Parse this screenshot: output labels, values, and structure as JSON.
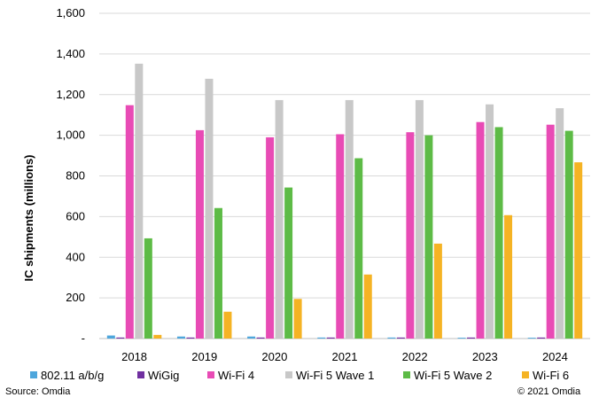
{
  "chart_data": {
    "type": "bar",
    "title": "",
    "xlabel": "",
    "ylabel": "IC shipments (millions)",
    "ylim": [
      0,
      1600
    ],
    "yticks": [
      0,
      200,
      400,
      600,
      800,
      1000,
      1200,
      1400,
      1600
    ],
    "ytick_labels": [
      "-",
      "200",
      "400",
      "600",
      "800",
      "1,000",
      "1,200",
      "1,400",
      "1,600"
    ],
    "grid": true,
    "legend_position": "bottom",
    "categories": [
      "2018",
      "2019",
      "2020",
      "2021",
      "2022",
      "2023",
      "2024"
    ],
    "series": [
      {
        "name": "802.11 a/b/g",
        "color": "#4EA6DC",
        "values": [
          15,
          10,
          10,
          5,
          5,
          4,
          4
        ]
      },
      {
        "name": "WiGig",
        "color": "#7030A0",
        "values": [
          5,
          5,
          5,
          5,
          5,
          5,
          5
        ]
      },
      {
        "name": "Wi-Fi 4",
        "color": "#E84BB5",
        "values": [
          1148,
          1025,
          990,
          1005,
          1015,
          1065,
          1052
        ]
      },
      {
        "name": "Wi-Fi 5  Wave 1",
        "color": "#C8C8C8",
        "values": [
          1352,
          1278,
          1173,
          1173,
          1173,
          1152,
          1133
        ]
      },
      {
        "name": "Wi-Fi 5  Wave 2",
        "color": "#5DBB46",
        "values": [
          493,
          642,
          743,
          887,
          1000,
          1040,
          1022
        ]
      },
      {
        "name": "Wi-Fi 6",
        "color": "#F5B324",
        "values": [
          18,
          132,
          195,
          315,
          467,
          607,
          867
        ]
      }
    ]
  },
  "footer": {
    "source": "Source: Omdia",
    "copyright": "© 2021 Omdia"
  }
}
